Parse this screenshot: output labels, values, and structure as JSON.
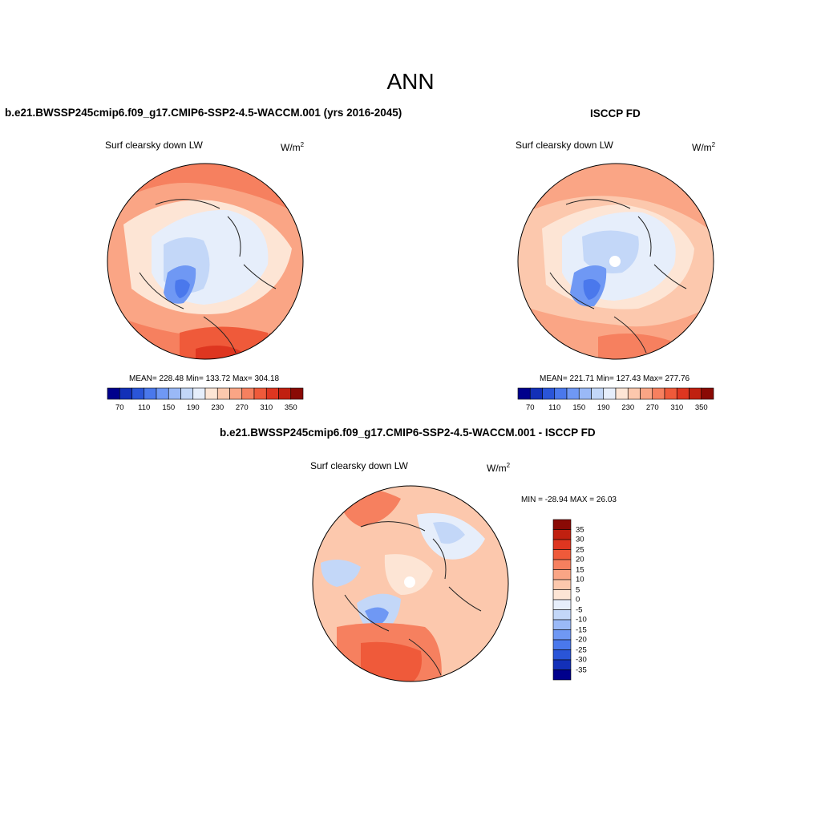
{
  "header": {
    "season": "ANN"
  },
  "panels": {
    "model": {
      "title": "b.e21.BWSSP245cmip6.f09_g17.CMIP6-SSP2-4.5-WACCM.001 (yrs 2016-2045)",
      "variable": "Surf clearsky down LW",
      "units_base": "W/m",
      "units_exp": "2",
      "stats": "MEAN= 228.48  Min= 133.72  Max= 304.18"
    },
    "obs": {
      "title": "ISCCP FD",
      "variable": "Surf clearsky down LW",
      "units_base": "W/m",
      "units_exp": "2",
      "stats": "MEAN= 221.71  Min= 127.43  Max= 277.76"
    },
    "diff": {
      "title": "b.e21.BWSSP245cmip6.f09_g17.CMIP6-SSP2-4.5-WACCM.001 - ISCCP FD",
      "variable": "Surf clearsky down LW",
      "units_base": "W/m",
      "units_exp": "2",
      "stats": "MIN = -28.94 MAX =  26.03"
    }
  },
  "chart_data": [
    {
      "type": "heatmap",
      "projection": "north-polar-stereographic",
      "title": "b.e21.BWSSP245cmip6.f09_g17.CMIP6-SSP2-4.5-WACCM.001 (yrs 2016-2045)",
      "variable": "Surf clearsky down LW",
      "units": "W/m2",
      "mean": 228.48,
      "min": 133.72,
      "max": 304.18,
      "colorbar": {
        "orientation": "horizontal",
        "levels": [
          70,
          90,
          110,
          130,
          150,
          170,
          190,
          210,
          230,
          250,
          270,
          290,
          310,
          330,
          350
        ],
        "tick_labels": [
          "70",
          "110",
          "150",
          "190",
          "230",
          "270",
          "310",
          "350"
        ],
        "colors": [
          "#00008c",
          "#1330b8",
          "#2a55d8",
          "#4a78ec",
          "#6f98f4",
          "#9ab9f7",
          "#c3d7f8",
          "#e6eefb",
          "#fde5d5",
          "#fcc8ad",
          "#faa585",
          "#f6805f",
          "#ef5a3a",
          "#de3620",
          "#c02010",
          "#8a0a05"
        ]
      }
    },
    {
      "type": "heatmap",
      "projection": "north-polar-stereographic",
      "title": "ISCCP FD",
      "variable": "Surf clearsky down LW",
      "units": "W/m2",
      "mean": 221.71,
      "min": 127.43,
      "max": 277.76,
      "colorbar": {
        "orientation": "horizontal",
        "levels": [
          70,
          90,
          110,
          130,
          150,
          170,
          190,
          210,
          230,
          250,
          270,
          290,
          310,
          330,
          350
        ],
        "tick_labels": [
          "70",
          "110",
          "150",
          "190",
          "230",
          "270",
          "310",
          "350"
        ],
        "colors": [
          "#00008c",
          "#1330b8",
          "#2a55d8",
          "#4a78ec",
          "#6f98f4",
          "#9ab9f7",
          "#c3d7f8",
          "#e6eefb",
          "#fde5d5",
          "#fcc8ad",
          "#faa585",
          "#f6805f",
          "#ef5a3a",
          "#de3620",
          "#c02010",
          "#8a0a05"
        ]
      }
    },
    {
      "type": "heatmap",
      "projection": "north-polar-stereographic",
      "title": "b.e21.BWSSP245cmip6.f09_g17.CMIP6-SSP2-4.5-WACCM.001 - ISCCP FD",
      "variable": "Surf clearsky down LW",
      "units": "W/m2",
      "min": -28.94,
      "max": 26.03,
      "colorbar": {
        "orientation": "vertical",
        "levels": [
          35,
          30,
          25,
          20,
          15,
          10,
          5,
          0,
          -5,
          -10,
          -15,
          -20,
          -25,
          -30,
          -35
        ],
        "tick_labels": [
          "35",
          "30",
          "25",
          "20",
          "15",
          "10",
          "5",
          "0",
          "-5",
          "-10",
          "-15",
          "-20",
          "-25",
          "-30",
          "-35"
        ],
        "colors": [
          "#8a0a05",
          "#c02010",
          "#de3620",
          "#ef5a3a",
          "#f6805f",
          "#faa585",
          "#fcc8ad",
          "#fde5d5",
          "#e6eefb",
          "#c3d7f8",
          "#9ab9f7",
          "#6f98f4",
          "#4a78ec",
          "#2a55d8",
          "#1330b8",
          "#00008c"
        ]
      }
    }
  ]
}
